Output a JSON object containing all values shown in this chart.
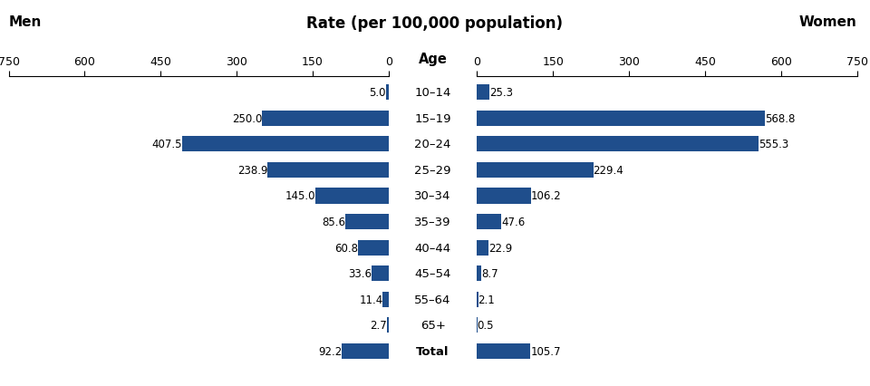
{
  "age_groups": [
    "10–14",
    "15–19",
    "20–24",
    "25–29",
    "30–34",
    "35–39",
    "40–44",
    "45–54",
    "55–64",
    "65+",
    "Total"
  ],
  "men_values": [
    5.0,
    250.0,
    407.5,
    238.9,
    145.0,
    85.6,
    60.8,
    33.6,
    11.4,
    2.7,
    92.2
  ],
  "women_values": [
    25.3,
    568.8,
    555.3,
    229.4,
    106.2,
    47.6,
    22.9,
    8.7,
    2.1,
    0.5,
    105.7
  ],
  "bar_color": "#1F4E8C",
  "xlim": 750,
  "xlabel": "Rate (per 100,000 population)",
  "left_label": "Men",
  "right_label": "Women",
  "age_label": "Age",
  "background_color": "#ffffff",
  "title_fontsize": 12,
  "tick_fontsize": 9,
  "label_fontsize": 10,
  "bar_label_fontsize": 8.5,
  "men_label_color": "#000000",
  "women_label_color": "#000000"
}
